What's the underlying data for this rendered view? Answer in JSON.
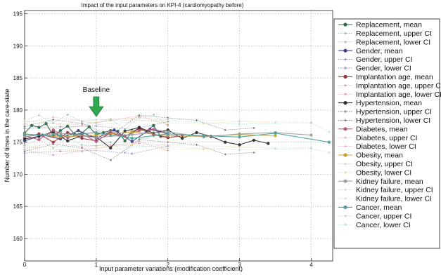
{
  "chart_data": {
    "type": "line",
    "title": "Impact of the input parameters on KPI-4 (cardiomyopathy before)",
    "xlabel": "Input parameter variations (modification coefficient)",
    "ylabel": "Number of times in the care-state",
    "xlim": [
      0,
      4.3
    ],
    "ylim": [
      156.5,
      195.5
    ],
    "xticks": [
      0,
      1,
      2,
      3,
      4
    ],
    "yticks": [
      160,
      165,
      170,
      175,
      180,
      185,
      190,
      195
    ],
    "grid": true,
    "legend_position": "right",
    "annotation": {
      "text": "Baseline",
      "x": 1.0,
      "arrow_color": "#2fa84f"
    },
    "series": [
      {
        "name": "Replacement, mean",
        "color": "#2a6b4a",
        "style": "mean",
        "x": [
          0,
          0.1,
          0.2,
          0.3,
          0.4,
          0.5,
          0.6,
          0.7,
          0.8,
          0.9,
          1.0,
          1.1,
          1.2,
          1.3,
          1.4,
          1.5,
          1.6,
          1.7,
          1.8,
          1.9,
          2.0
        ],
        "y": [
          176.4,
          177.6,
          177.3,
          177.9,
          176.0,
          176.8,
          177.5,
          176.2,
          176.4,
          177.4,
          176.2,
          176.5,
          176.8,
          176.7,
          175.2,
          176.6,
          177.2,
          176.7,
          177.6,
          175.9,
          175.8
        ]
      },
      {
        "name": "Replacement, upper CI",
        "color": "#7db29a",
        "style": "ci",
        "x": [
          0,
          0.2,
          0.4,
          0.6,
          0.8,
          1.0,
          1.2,
          1.4,
          1.6,
          1.8,
          2.0
        ],
        "y": [
          178.3,
          179.2,
          178.0,
          179.3,
          178.2,
          178.0,
          178.6,
          177.0,
          178.9,
          179.3,
          177.6
        ]
      },
      {
        "name": "Replacement, lower CI",
        "color": "#7db29a",
        "style": "ci",
        "x": [
          0,
          0.2,
          0.4,
          0.6,
          0.8,
          1.0,
          1.2,
          1.4,
          1.6,
          1.8,
          2.0
        ],
        "y": [
          174.5,
          175.4,
          174.1,
          175.7,
          174.6,
          174.4,
          175.0,
          173.4,
          175.5,
          175.9,
          174.0
        ]
      },
      {
        "name": "Gender, mean",
        "color": "#3d3d8a",
        "style": "mean",
        "x": [
          0,
          0.25,
          0.5,
          0.75,
          1.0,
          1.25,
          1.5,
          1.75,
          2.0
        ],
        "y": [
          175.2,
          176.1,
          175.5,
          176.8,
          175.6,
          176.9,
          175.1,
          177.0,
          176.3
        ]
      },
      {
        "name": "Gender, upper CI",
        "color": "#6a6aa8",
        "style": "ci",
        "x": [
          0,
          0.5,
          1.0,
          1.5,
          2.0
        ],
        "y": [
          177.1,
          177.4,
          177.5,
          177.0,
          178.2
        ]
      },
      {
        "name": "Gender, lower CI",
        "color": "#6a6aa8",
        "style": "ci",
        "x": [
          0,
          0.5,
          1.0,
          1.5,
          2.0
        ],
        "y": [
          173.3,
          173.6,
          173.7,
          173.2,
          174.4
        ]
      },
      {
        "name": "Implantation age, mean",
        "color": "#a0303a",
        "style": "mean",
        "x": [
          0,
          0.2,
          0.4,
          0.6,
          0.8,
          1.0,
          1.2,
          1.4,
          1.6,
          1.8,
          2.0,
          2.2
        ],
        "y": [
          175.8,
          176.3,
          175.0,
          176.5,
          175.6,
          175.2,
          176.4,
          175.9,
          177.1,
          176.2,
          175.7,
          176.0
        ]
      },
      {
        "name": "Implantation age, upper CI",
        "color": "#cf7c86",
        "style": "ci",
        "x": [
          0,
          0.4,
          0.8,
          1.2,
          1.6,
          2.0
        ],
        "y": [
          177.8,
          177.0,
          177.6,
          178.4,
          179.1,
          177.7
        ]
      },
      {
        "name": "Implantation age, lower CI",
        "color": "#cf7c86",
        "style": "ci",
        "x": [
          0,
          0.4,
          0.8,
          1.2,
          1.6,
          2.0
        ],
        "y": [
          173.8,
          173.0,
          173.6,
          174.4,
          175.1,
          173.7
        ]
      },
      {
        "name": "Hypertension, mean",
        "color": "#2b2b2b",
        "style": "mean",
        "x": [
          0,
          0.2,
          0.4,
          0.6,
          0.8,
          1.0,
          1.2,
          1.4,
          1.6,
          1.8,
          2.0,
          2.2,
          2.4,
          2.6,
          2.8,
          3.0,
          3.2,
          3.4
        ],
        "y": [
          175.5,
          175.9,
          176.6,
          175.2,
          176.0,
          175.8,
          174.1,
          176.7,
          177.3,
          176.4,
          176.9,
          175.6,
          176.5,
          175.9,
          175.0,
          174.6,
          175.3,
          174.8
        ]
      },
      {
        "name": "Hypertension, upper CI",
        "color": "#555555",
        "style": "ci",
        "x": [
          0,
          0.4,
          0.8,
          1.2,
          1.6,
          2.0,
          2.4,
          2.8,
          3.2
        ],
        "y": [
          177.4,
          178.5,
          177.9,
          176.0,
          179.2,
          178.8,
          178.4,
          176.9,
          177.2
        ]
      },
      {
        "name": "Hypertension, lower CI",
        "color": "#555555",
        "style": "ci",
        "x": [
          0,
          0.4,
          0.8,
          1.2,
          1.6,
          2.0,
          2.4,
          2.8,
          3.2
        ],
        "y": [
          173.6,
          174.7,
          174.1,
          172.2,
          175.4,
          175.0,
          174.6,
          173.1,
          173.4
        ]
      },
      {
        "name": "Diabetes, mean",
        "color": "#b85a7a",
        "style": "mean",
        "x": [
          0,
          0.2,
          0.4,
          0.6,
          0.8,
          1.0,
          1.2,
          1.4,
          1.6,
          1.8,
          2.0
        ],
        "y": [
          176.0,
          175.4,
          176.9,
          175.7,
          176.3,
          175.1,
          176.6,
          176.0,
          176.8,
          177.0,
          176.5
        ]
      },
      {
        "name": "Diabetes, upper CI",
        "color": "#d9a0b5",
        "style": "ci",
        "x": [
          0,
          0.4,
          0.8,
          1.2,
          1.6,
          2.0
        ],
        "y": [
          178.0,
          178.9,
          178.3,
          178.6,
          178.8,
          178.5
        ]
      },
      {
        "name": "Diabetes, lower CI",
        "color": "#d9a0b5",
        "style": "ci",
        "x": [
          0,
          0.4,
          0.8,
          1.2,
          1.6,
          2.0
        ],
        "y": [
          174.0,
          174.9,
          174.3,
          174.6,
          174.8,
          174.5
        ]
      },
      {
        "name": "Obesity, mean",
        "color": "#c8a030",
        "style": "mean",
        "x": [
          0,
          0.5,
          1.0,
          1.5,
          2.0,
          2.5,
          3.0,
          3.5
        ],
        "y": [
          176.3,
          175.8,
          176.1,
          176.6,
          176.0,
          175.9,
          176.2,
          176.0
        ]
      },
      {
        "name": "Obesity, upper CI",
        "color": "#e0c878",
        "style": "ci",
        "x": [
          0,
          0.5,
          1.0,
          1.5,
          2.0,
          2.5,
          3.0,
          3.5
        ],
        "y": [
          178.3,
          177.8,
          178.1,
          178.6,
          178.0,
          177.9,
          178.2,
          178.0
        ]
      },
      {
        "name": "Obesity, lower CI",
        "color": "#e0c878",
        "style": "ci",
        "x": [
          0,
          0.5,
          1.0,
          1.5,
          2.0,
          2.5,
          3.0,
          3.5
        ],
        "y": [
          174.3,
          173.8,
          174.1,
          174.6,
          174.0,
          173.9,
          174.2,
          174.0
        ]
      },
      {
        "name": "Kidney failure, mean",
        "color": "#a0a0a0",
        "style": "mean",
        "x": [
          0,
          0.5,
          1.0,
          1.5,
          2.0,
          2.5,
          3.0,
          3.5,
          4.0
        ],
        "y": [
          175.9,
          176.4,
          175.7,
          176.2,
          176.6,
          175.8,
          176.3,
          176.5,
          176.1
        ]
      },
      {
        "name": "Kidney failure, upper CI",
        "color": "#c9c9c9",
        "style": "ci",
        "x": [
          0,
          1.0,
          2.0,
          3.0,
          4.0
        ],
        "y": [
          177.9,
          177.7,
          178.6,
          178.3,
          178.1
        ]
      },
      {
        "name": "Kidney failure, lower CI",
        "color": "#c9c9c9",
        "style": "ci",
        "x": [
          0,
          1.0,
          2.0,
          3.0,
          4.0
        ],
        "y": [
          173.9,
          173.7,
          174.6,
          174.3,
          174.1
        ]
      },
      {
        "name": "Cancer, mean",
        "color": "#4aa0a0",
        "style": "mean",
        "x": [
          0,
          0.5,
          1.0,
          1.5,
          2.0,
          2.5,
          3.0,
          3.5,
          4.25
        ],
        "y": [
          176.2,
          176.0,
          176.5,
          175.6,
          176.3,
          176.0,
          175.8,
          176.4,
          175.0
        ]
      },
      {
        "name": "Cancer, upper CI",
        "color": "#9ed0d0",
        "style": "ci",
        "x": [
          0,
          1.0,
          2.0,
          3.0,
          4.0,
          4.25
        ],
        "y": [
          178.2,
          178.5,
          178.3,
          177.8,
          178.0,
          176.6
        ]
      },
      {
        "name": "Cancer, lower CI",
        "color": "#9ed0d0",
        "style": "ci",
        "x": [
          0,
          1.0,
          2.0,
          3.0,
          4.0,
          4.25
        ],
        "y": [
          174.2,
          174.5,
          174.3,
          173.8,
          174.0,
          173.4
        ]
      }
    ]
  }
}
